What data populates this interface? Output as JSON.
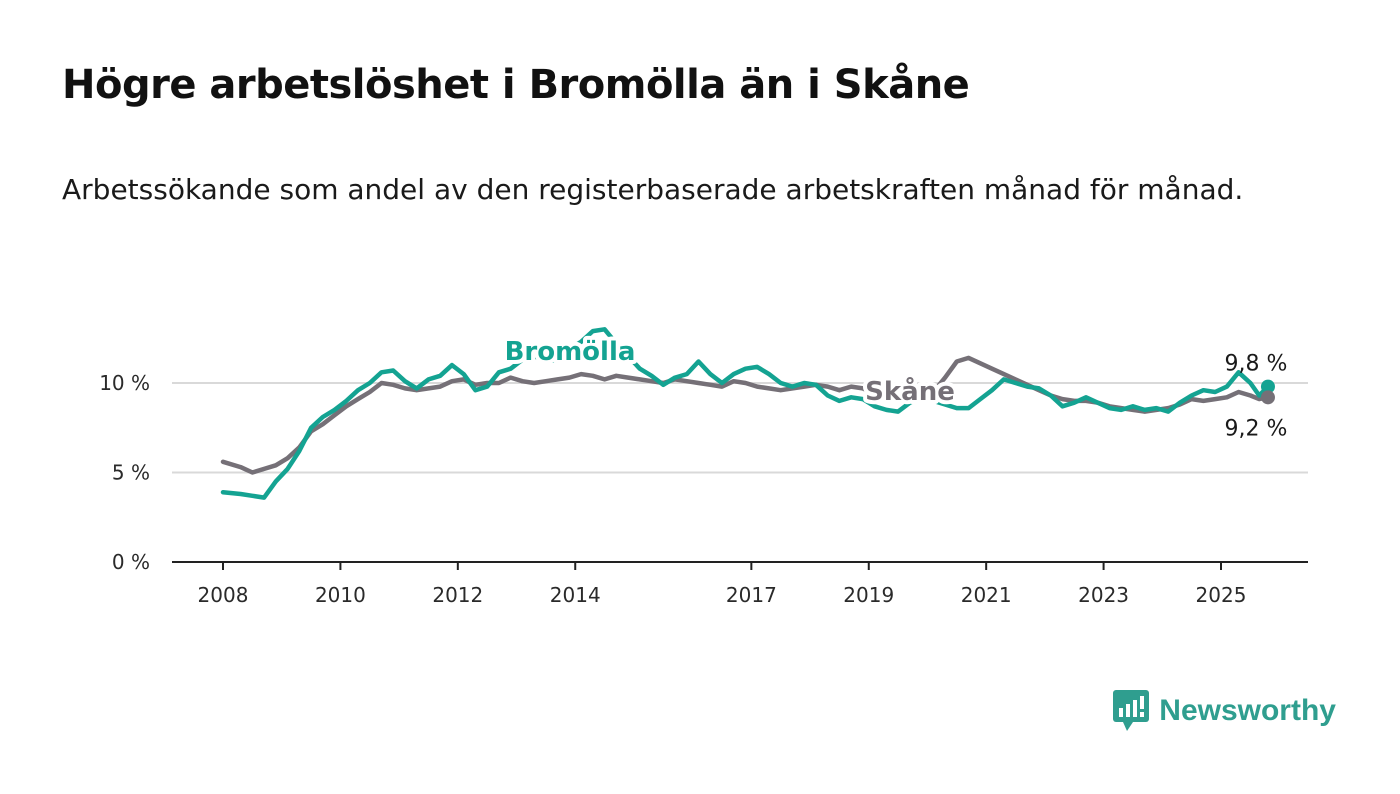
{
  "page": {
    "title": "Högre arbetslöshet i Bromölla än i Skåne",
    "subtitle": "Arbetssökande som andel av den registerbaserade arbetskraften månad för månad.",
    "brand": "Newsworthy",
    "brand_icon": "bar-chart-speech-icon"
  },
  "chart_data": {
    "type": "line",
    "title": "Högre arbetslöshet i Bromölla än i Skåne",
    "subtitle": "Arbetssökande som andel av den registerbaserade arbetskraften månad för månad.",
    "xlabel": "",
    "ylabel": "",
    "x_ticks": [
      "2008",
      "2010",
      "2012",
      "2014",
      "2017",
      "2019",
      "2021",
      "2023",
      "2025"
    ],
    "y_ticks": [
      "0 %",
      "5 %",
      "10 %"
    ],
    "ylim": [
      0,
      12
    ],
    "grid": true,
    "series": [
      {
        "name": "Bromölla",
        "color": "#14a392",
        "end_label": "9,8 %",
        "points": [
          [
            2008.0,
            3.9
          ],
          [
            2008.3,
            3.8
          ],
          [
            2008.5,
            3.7
          ],
          [
            2008.7,
            3.6
          ],
          [
            2008.9,
            4.5
          ],
          [
            2009.1,
            5.2
          ],
          [
            2009.3,
            6.2
          ],
          [
            2009.5,
            7.5
          ],
          [
            2009.7,
            8.1
          ],
          [
            2009.9,
            8.5
          ],
          [
            2010.1,
            9.0
          ],
          [
            2010.3,
            9.6
          ],
          [
            2010.5,
            10.0
          ],
          [
            2010.7,
            10.6
          ],
          [
            2010.9,
            10.7
          ],
          [
            2011.1,
            10.1
          ],
          [
            2011.3,
            9.7
          ],
          [
            2011.5,
            10.2
          ],
          [
            2011.7,
            10.4
          ],
          [
            2011.9,
            11.0
          ],
          [
            2012.1,
            10.5
          ],
          [
            2012.3,
            9.6
          ],
          [
            2012.5,
            9.8
          ],
          [
            2012.7,
            10.6
          ],
          [
            2012.9,
            10.8
          ],
          [
            2013.1,
            11.3
          ],
          [
            2013.3,
            11.5
          ],
          [
            2013.5,
            11.2
          ],
          [
            2013.7,
            11.3
          ],
          [
            2013.9,
            11.9
          ],
          [
            2014.1,
            12.3
          ],
          [
            2014.3,
            12.9
          ],
          [
            2014.5,
            13.0
          ],
          [
            2014.7,
            12.2
          ],
          [
            2014.9,
            11.5
          ],
          [
            2015.1,
            10.8
          ],
          [
            2015.3,
            10.4
          ],
          [
            2015.5,
            9.9
          ],
          [
            2015.7,
            10.3
          ],
          [
            2015.9,
            10.5
          ],
          [
            2016.1,
            11.2
          ],
          [
            2016.3,
            10.5
          ],
          [
            2016.5,
            10.0
          ],
          [
            2016.7,
            10.5
          ],
          [
            2016.9,
            10.8
          ],
          [
            2017.1,
            10.9
          ],
          [
            2017.3,
            10.5
          ],
          [
            2017.5,
            10.0
          ],
          [
            2017.7,
            9.8
          ],
          [
            2017.9,
            10.0
          ],
          [
            2018.1,
            9.9
          ],
          [
            2018.3,
            9.3
          ],
          [
            2018.5,
            9.0
          ],
          [
            2018.7,
            9.2
          ],
          [
            2018.9,
            9.1
          ],
          [
            2019.1,
            8.7
          ],
          [
            2019.3,
            8.5
          ],
          [
            2019.5,
            8.4
          ],
          [
            2019.7,
            8.9
          ],
          [
            2019.9,
            9.2
          ],
          [
            2020.1,
            9.0
          ],
          [
            2020.3,
            8.8
          ],
          [
            2020.5,
            8.6
          ],
          [
            2020.7,
            8.6
          ],
          [
            2020.9,
            9.1
          ],
          [
            2021.1,
            9.6
          ],
          [
            2021.3,
            10.2
          ],
          [
            2021.5,
            10.0
          ],
          [
            2021.7,
            9.8
          ],
          [
            2021.9,
            9.7
          ],
          [
            2022.1,
            9.3
          ],
          [
            2022.3,
            8.7
          ],
          [
            2022.5,
            8.9
          ],
          [
            2022.7,
            9.2
          ],
          [
            2022.9,
            8.9
          ],
          [
            2023.1,
            8.6
          ],
          [
            2023.3,
            8.5
          ],
          [
            2023.5,
            8.7
          ],
          [
            2023.7,
            8.5
          ],
          [
            2023.9,
            8.6
          ],
          [
            2024.1,
            8.4
          ],
          [
            2024.3,
            8.9
          ],
          [
            2024.5,
            9.3
          ],
          [
            2024.7,
            9.6
          ],
          [
            2024.9,
            9.5
          ],
          [
            2025.1,
            9.8
          ],
          [
            2025.3,
            10.6
          ],
          [
            2025.5,
            10.0
          ],
          [
            2025.65,
            9.3
          ],
          [
            2025.8,
            9.8
          ]
        ]
      },
      {
        "name": "Skåne",
        "color": "#757077",
        "end_label": "9,2 %",
        "points": [
          [
            2008.0,
            5.6
          ],
          [
            2008.3,
            5.3
          ],
          [
            2008.5,
            5.0
          ],
          [
            2008.7,
            5.2
          ],
          [
            2008.9,
            5.4
          ],
          [
            2009.1,
            5.8
          ],
          [
            2009.3,
            6.4
          ],
          [
            2009.5,
            7.3
          ],
          [
            2009.7,
            7.7
          ],
          [
            2009.9,
            8.2
          ],
          [
            2010.1,
            8.7
          ],
          [
            2010.3,
            9.1
          ],
          [
            2010.5,
            9.5
          ],
          [
            2010.7,
            10.0
          ],
          [
            2010.9,
            9.9
          ],
          [
            2011.1,
            9.7
          ],
          [
            2011.3,
            9.6
          ],
          [
            2011.5,
            9.7
          ],
          [
            2011.7,
            9.8
          ],
          [
            2011.9,
            10.1
          ],
          [
            2012.1,
            10.2
          ],
          [
            2012.3,
            9.9
          ],
          [
            2012.5,
            10.0
          ],
          [
            2012.7,
            10.0
          ],
          [
            2012.9,
            10.3
          ],
          [
            2013.1,
            10.1
          ],
          [
            2013.3,
            10.0
          ],
          [
            2013.5,
            10.1
          ],
          [
            2013.7,
            10.2
          ],
          [
            2013.9,
            10.3
          ],
          [
            2014.1,
            10.5
          ],
          [
            2014.3,
            10.4
          ],
          [
            2014.5,
            10.2
          ],
          [
            2014.7,
            10.4
          ],
          [
            2014.9,
            10.3
          ],
          [
            2015.1,
            10.2
          ],
          [
            2015.3,
            10.1
          ],
          [
            2015.5,
            10.0
          ],
          [
            2015.7,
            10.2
          ],
          [
            2015.9,
            10.1
          ],
          [
            2016.1,
            10.0
          ],
          [
            2016.3,
            9.9
          ],
          [
            2016.5,
            9.8
          ],
          [
            2016.7,
            10.1
          ],
          [
            2016.9,
            10.0
          ],
          [
            2017.1,
            9.8
          ],
          [
            2017.3,
            9.7
          ],
          [
            2017.5,
            9.6
          ],
          [
            2017.7,
            9.7
          ],
          [
            2017.9,
            9.8
          ],
          [
            2018.1,
            9.9
          ],
          [
            2018.3,
            9.8
          ],
          [
            2018.5,
            9.6
          ],
          [
            2018.7,
            9.8
          ],
          [
            2018.9,
            9.7
          ],
          [
            2019.1,
            9.4
          ],
          [
            2019.3,
            9.2
          ],
          [
            2019.5,
            9.1
          ],
          [
            2019.7,
            9.3
          ],
          [
            2019.9,
            9.4
          ],
          [
            2020.1,
            9.5
          ],
          [
            2020.3,
            10.3
          ],
          [
            2020.5,
            11.2
          ],
          [
            2020.7,
            11.4
          ],
          [
            2020.9,
            11.1
          ],
          [
            2021.1,
            10.8
          ],
          [
            2021.3,
            10.5
          ],
          [
            2021.5,
            10.2
          ],
          [
            2021.7,
            9.9
          ],
          [
            2021.9,
            9.6
          ],
          [
            2022.1,
            9.3
          ],
          [
            2022.3,
            9.1
          ],
          [
            2022.5,
            9.0
          ],
          [
            2022.7,
            9.0
          ],
          [
            2022.9,
            8.9
          ],
          [
            2023.1,
            8.7
          ],
          [
            2023.3,
            8.6
          ],
          [
            2023.5,
            8.5
          ],
          [
            2023.7,
            8.4
          ],
          [
            2023.9,
            8.5
          ],
          [
            2024.1,
            8.6
          ],
          [
            2024.3,
            8.8
          ],
          [
            2024.5,
            9.1
          ],
          [
            2024.7,
            9.0
          ],
          [
            2024.9,
            9.1
          ],
          [
            2025.1,
            9.2
          ],
          [
            2025.3,
            9.5
          ],
          [
            2025.5,
            9.3
          ],
          [
            2025.65,
            9.1
          ],
          [
            2025.8,
            9.2
          ]
        ]
      }
    ]
  }
}
